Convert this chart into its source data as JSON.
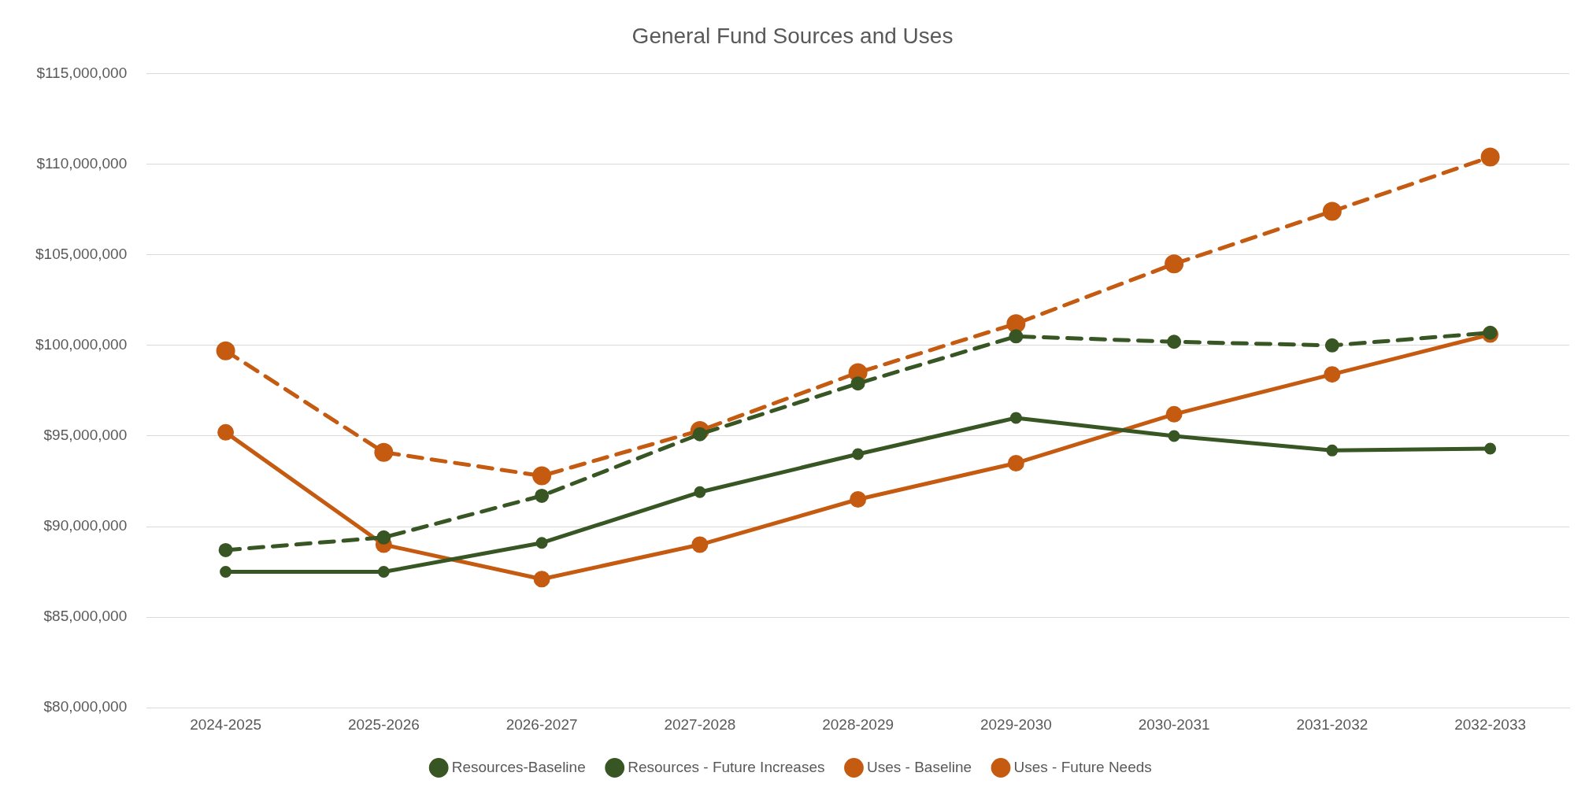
{
  "chart_data": {
    "type": "line",
    "title": "General Fund Sources and Uses",
    "categories": [
      "2024-2025",
      "2025-2026",
      "2026-2027",
      "2027-2028",
      "2028-2029",
      "2029-2030",
      "2030-2031",
      "2031-2032",
      "2032-2033"
    ],
    "series": [
      {
        "name": "Resources-Baseline",
        "color": "#375623",
        "line_style": "solid",
        "values": [
          87500000,
          87500000,
          89100000,
          91900000,
          94000000,
          96000000,
          95000000,
          94200000,
          94300000
        ]
      },
      {
        "name": "Resources - Future Increases",
        "color": "#375623",
        "line_style": "dashed",
        "values": [
          88700000,
          89400000,
          91700000,
          95100000,
          97900000,
          100500000,
          100200000,
          100000000,
          100700000
        ]
      },
      {
        "name": "Uses - Baseline",
        "color": "#c55a11",
        "line_style": "solid",
        "values": [
          95200000,
          89000000,
          87100000,
          89000000,
          91500000,
          93500000,
          96200000,
          98400000,
          100600000
        ]
      },
      {
        "name": "Uses - Future Needs",
        "color": "#c55a11",
        "line_style": "dashed",
        "values": [
          99700000,
          94100000,
          92800000,
          95300000,
          98500000,
          101200000,
          104500000,
          107400000,
          110400000
        ]
      }
    ],
    "ylim": [
      80000000,
      115000000
    ],
    "yticks": [
      {
        "value": 80000000,
        "label": "$80,000,000"
      },
      {
        "value": 85000000,
        "label": "$85,000,000"
      },
      {
        "value": 90000000,
        "label": "$90,000,000"
      },
      {
        "value": 95000000,
        "label": "$95,000,000"
      },
      {
        "value": 100000000,
        "label": "$100,000,000"
      },
      {
        "value": 105000000,
        "label": "$105,000,000"
      },
      {
        "value": 110000000,
        "label": "$110,000,000"
      },
      {
        "value": 115000000,
        "label": "$115,000,000"
      }
    ],
    "grid": "y",
    "legend": "bottom",
    "marker": "circle"
  }
}
